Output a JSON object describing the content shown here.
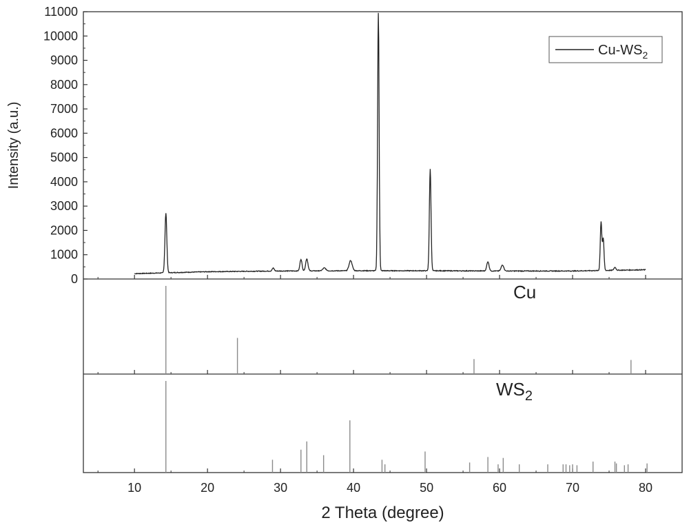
{
  "chart_data": {
    "type": "line",
    "xlabel": "2 Theta (degree)",
    "ylabel": "Intensity (a.u.)",
    "xlim": [
      3,
      85
    ],
    "x_ticks": [
      10,
      20,
      30,
      40,
      50,
      60,
      70,
      80
    ],
    "main_panel": {
      "ylim": [
        0,
        11000
      ],
      "y_ticks": [
        0,
        1000,
        2000,
        3000,
        4000,
        5000,
        6000,
        7000,
        8000,
        9000,
        10000,
        11000
      ],
      "legend": {
        "position": "top-right",
        "entries": [
          {
            "text": "Cu-WS",
            "subscript": "2"
          }
        ]
      },
      "series": [
        {
          "name": "Cu-WS2",
          "baseline": [
            [
              10,
              220
            ],
            [
              20,
              300
            ],
            [
              30,
              330
            ],
            [
              40,
              340
            ],
            [
              50,
              340
            ],
            [
              60,
              330
            ],
            [
              70,
              330
            ],
            [
              80,
              380
            ]
          ],
          "peaks": [
            {
              "x": 14.3,
              "y": 2450,
              "w": 0.18
            },
            {
              "x": 29.0,
              "y": 120,
              "w": 0.2
            },
            {
              "x": 32.8,
              "y": 480,
              "w": 0.2
            },
            {
              "x": 33.6,
              "y": 500,
              "w": 0.22
            },
            {
              "x": 36.0,
              "y": 120,
              "w": 0.3
            },
            {
              "x": 39.6,
              "y": 420,
              "w": 0.3
            },
            {
              "x": 43.4,
              "y": 10600,
              "w": 0.15
            },
            {
              "x": 50.5,
              "y": 4200,
              "w": 0.16
            },
            {
              "x": 58.4,
              "y": 380,
              "w": 0.22
            },
            {
              "x": 60.4,
              "y": 250,
              "w": 0.25
            },
            {
              "x": 73.9,
              "y": 2000,
              "w": 0.15
            },
            {
              "x": 74.2,
              "y": 1300,
              "w": 0.15
            },
            {
              "x": 75.8,
              "y": 120,
              "w": 0.2
            }
          ]
        }
      ]
    },
    "reference_panels": [
      {
        "label": "Cu",
        "lines": [
          {
            "x": 14.3,
            "value": 1.0
          },
          {
            "x": 24.1,
            "value": 0.41
          },
          {
            "x": 56.5,
            "value": 0.17
          },
          {
            "x": 78.0,
            "value": 0.16
          }
        ]
      },
      {
        "label": "WS",
        "label_subscript": "2",
        "lines": [
          {
            "x": 14.3,
            "value": 1.0
          },
          {
            "x": 28.9,
            "value": 0.14
          },
          {
            "x": 32.8,
            "value": 0.25
          },
          {
            "x": 33.6,
            "value": 0.34
          },
          {
            "x": 35.9,
            "value": 0.19
          },
          {
            "x": 39.5,
            "value": 0.57
          },
          {
            "x": 43.9,
            "value": 0.14
          },
          {
            "x": 44.3,
            "value": 0.09
          },
          {
            "x": 49.8,
            "value": 0.23
          },
          {
            "x": 55.9,
            "value": 0.11
          },
          {
            "x": 58.4,
            "value": 0.17
          },
          {
            "x": 59.8,
            "value": 0.09
          },
          {
            "x": 60.5,
            "value": 0.16
          },
          {
            "x": 62.7,
            "value": 0.09
          },
          {
            "x": 66.6,
            "value": 0.09
          },
          {
            "x": 68.7,
            "value": 0.09
          },
          {
            "x": 69.1,
            "value": 0.09
          },
          {
            "x": 69.6,
            "value": 0.08
          },
          {
            "x": 70.0,
            "value": 0.09
          },
          {
            "x": 70.6,
            "value": 0.08
          },
          {
            "x": 72.8,
            "value": 0.12
          },
          {
            "x": 75.8,
            "value": 0.12
          },
          {
            "x": 76.0,
            "value": 0.1
          },
          {
            "x": 77.1,
            "value": 0.08
          },
          {
            "x": 77.6,
            "value": 0.09
          },
          {
            "x": 80.2,
            "value": 0.1
          }
        ]
      }
    ],
    "colors": {
      "line": "#222222",
      "reference": "#8a8a8a",
      "axis": "#333333"
    }
  }
}
